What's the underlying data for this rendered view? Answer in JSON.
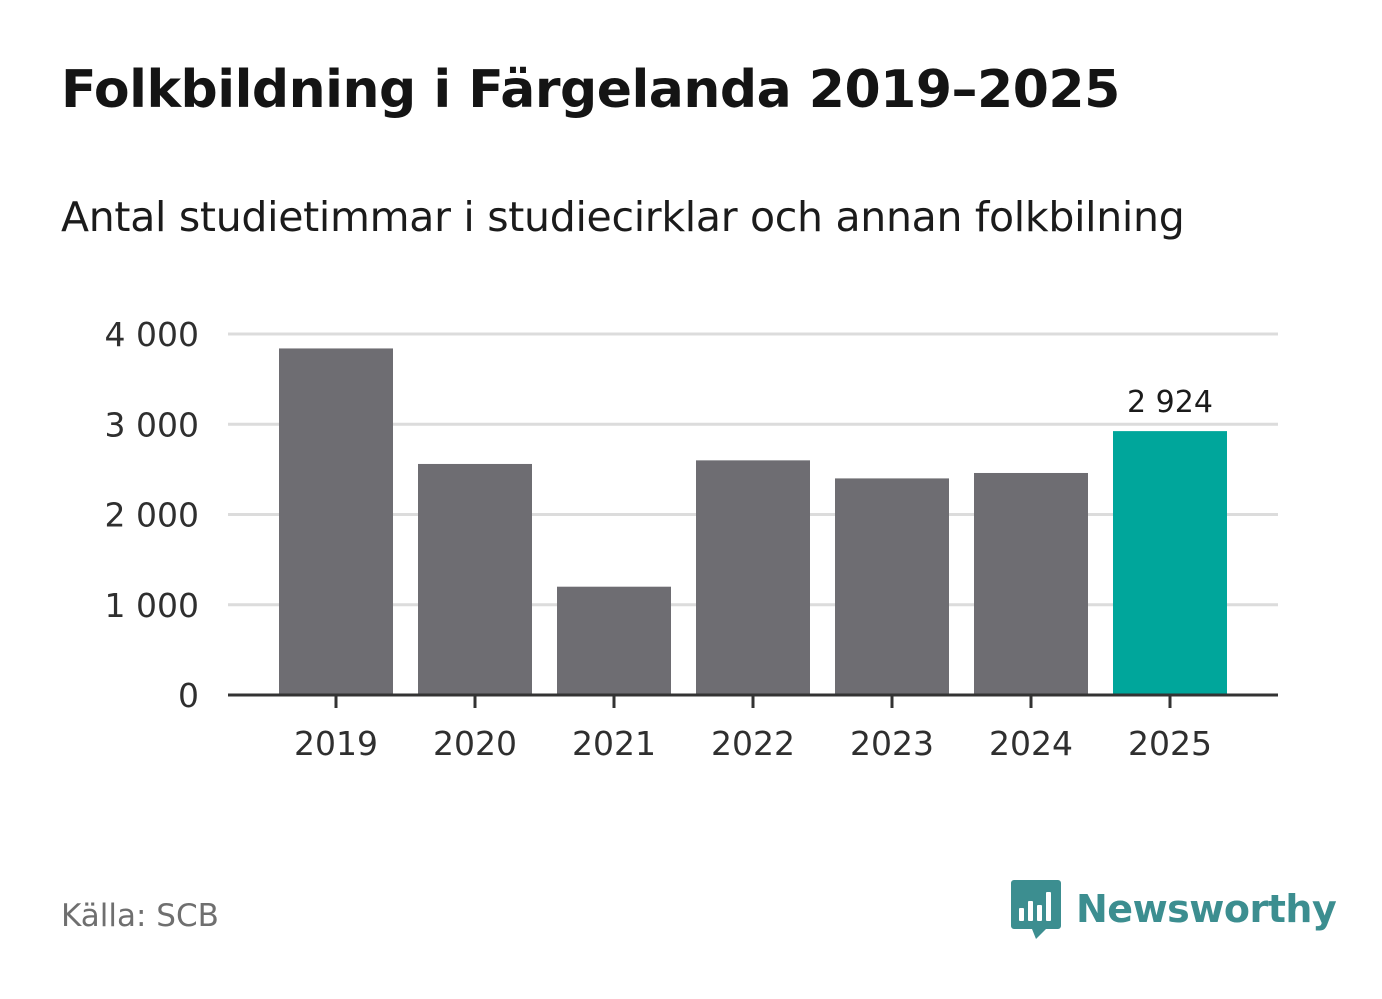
{
  "header": {
    "title": "Folkbildning i Färgelanda 2019–2025",
    "subtitle": "Antal studietimmar i studiecirklar och annan folkbilning"
  },
  "footer": {
    "source": "Källa: SCB",
    "brand": "Newsworthy",
    "brand_icon": "bar-chart-speech-bubble-icon"
  },
  "colors": {
    "bar_default": "#6e6d72",
    "bar_highlight": "#00a69b",
    "grid": "#dcdcdc",
    "axis": "#333333",
    "tick_text": "#2f2f2f",
    "brand": "#3c8e90"
  },
  "chart_data": {
    "type": "bar",
    "title": "Folkbildning i Färgelanda 2019–2025",
    "subtitle": "Antal studietimmar i studiecirklar och annan folkbilning",
    "categories": [
      "2019",
      "2020",
      "2021",
      "2022",
      "2023",
      "2024",
      "2025"
    ],
    "values": [
      3840,
      2560,
      1200,
      2600,
      2400,
      2460,
      2924
    ],
    "highlight_index": 6,
    "data_labels": [
      {
        "index": 6,
        "text": "2 924"
      }
    ],
    "xlabel": "",
    "ylabel": "",
    "ylim": [
      0,
      4000
    ],
    "yticks": [
      0,
      1000,
      2000,
      3000,
      4000
    ],
    "ytick_labels": [
      "0",
      "1 000",
      "2 000",
      "3 000",
      "4 000"
    ],
    "grid": true,
    "legend": "none"
  }
}
